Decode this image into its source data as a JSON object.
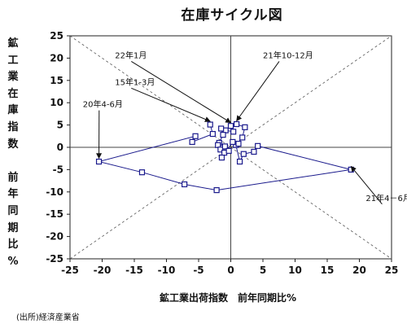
{
  "chart_data": {
    "type": "scatter",
    "title": "在庫サイクル図",
    "ylabel": "鉱工業在庫指数 前年同期比%",
    "xlabel": "鉱工業出荷指数　前年同期比%",
    "source": "(出所)経済産業省",
    "xlim": [
      -25,
      25
    ],
    "ylim": [
      -25,
      25
    ],
    "xticks": [
      "-25",
      "-20",
      "-15",
      "-10",
      "-5",
      "0",
      "5",
      "10",
      "15",
      "20",
      "25"
    ],
    "yticks": [
      "25",
      "20",
      "15",
      "10",
      "5",
      "0",
      "-5",
      "-10",
      "-15",
      "-20",
      "-25"
    ],
    "grid": false,
    "series": [
      {
        "color": "#1a1a8c",
        "points": [
          [
            -3.2,
            5.1
          ],
          [
            -2.8,
            3.0
          ],
          [
            -6.0,
            1.2
          ],
          [
            -5.5,
            2.5
          ],
          [
            -20.5,
            -3.2
          ],
          [
            -13.8,
            -5.6
          ],
          [
            -7.2,
            -8.3
          ],
          [
            -2.2,
            -9.6
          ],
          [
            18.7,
            -5.0
          ],
          [
            4.2,
            0.3
          ],
          [
            3.6,
            -1.0
          ],
          [
            2.0,
            -1.5
          ],
          [
            1.4,
            -3.2
          ],
          [
            0.8,
            0.5
          ],
          [
            1.8,
            2.2
          ],
          [
            2.2,
            4.5
          ],
          [
            0.9,
            5.2
          ],
          [
            0.0,
            4.8
          ],
          [
            0.4,
            3.5
          ],
          [
            -0.8,
            3.8
          ],
          [
            -1.5,
            4.2
          ],
          [
            -1.2,
            2.8
          ],
          [
            -1.8,
            1.0
          ],
          [
            -2.0,
            0.5
          ],
          [
            -1.6,
            -0.5
          ],
          [
            -1.0,
            -1.2
          ],
          [
            -0.9,
            0.2
          ],
          [
            -0.3,
            -0.8
          ],
          [
            -1.4,
            -2.3
          ],
          [
            0.3,
            1.2
          ],
          [
            1.2,
            0.8
          ]
        ]
      }
    ],
    "annotations": [
      {
        "text": "22年1月",
        "from": [
          -18,
          20
        ],
        "to": [
          0.0,
          4.8
        ]
      },
      {
        "text": "21年10-12月",
        "from": [
          5,
          20
        ],
        "to": [
          0.9,
          5.2
        ]
      },
      {
        "text": "15年1-3月",
        "from": [
          -18,
          14
        ],
        "to": [
          -3.2,
          5.1
        ]
      },
      {
        "text": "20年4-6月",
        "from": [
          -23,
          9
        ],
        "to": [
          -20.5,
          -3.2
        ]
      },
      {
        "text": "21年4－6月",
        "from": [
          21,
          -12
        ],
        "to": [
          18.7,
          -5.0
        ]
      }
    ]
  }
}
